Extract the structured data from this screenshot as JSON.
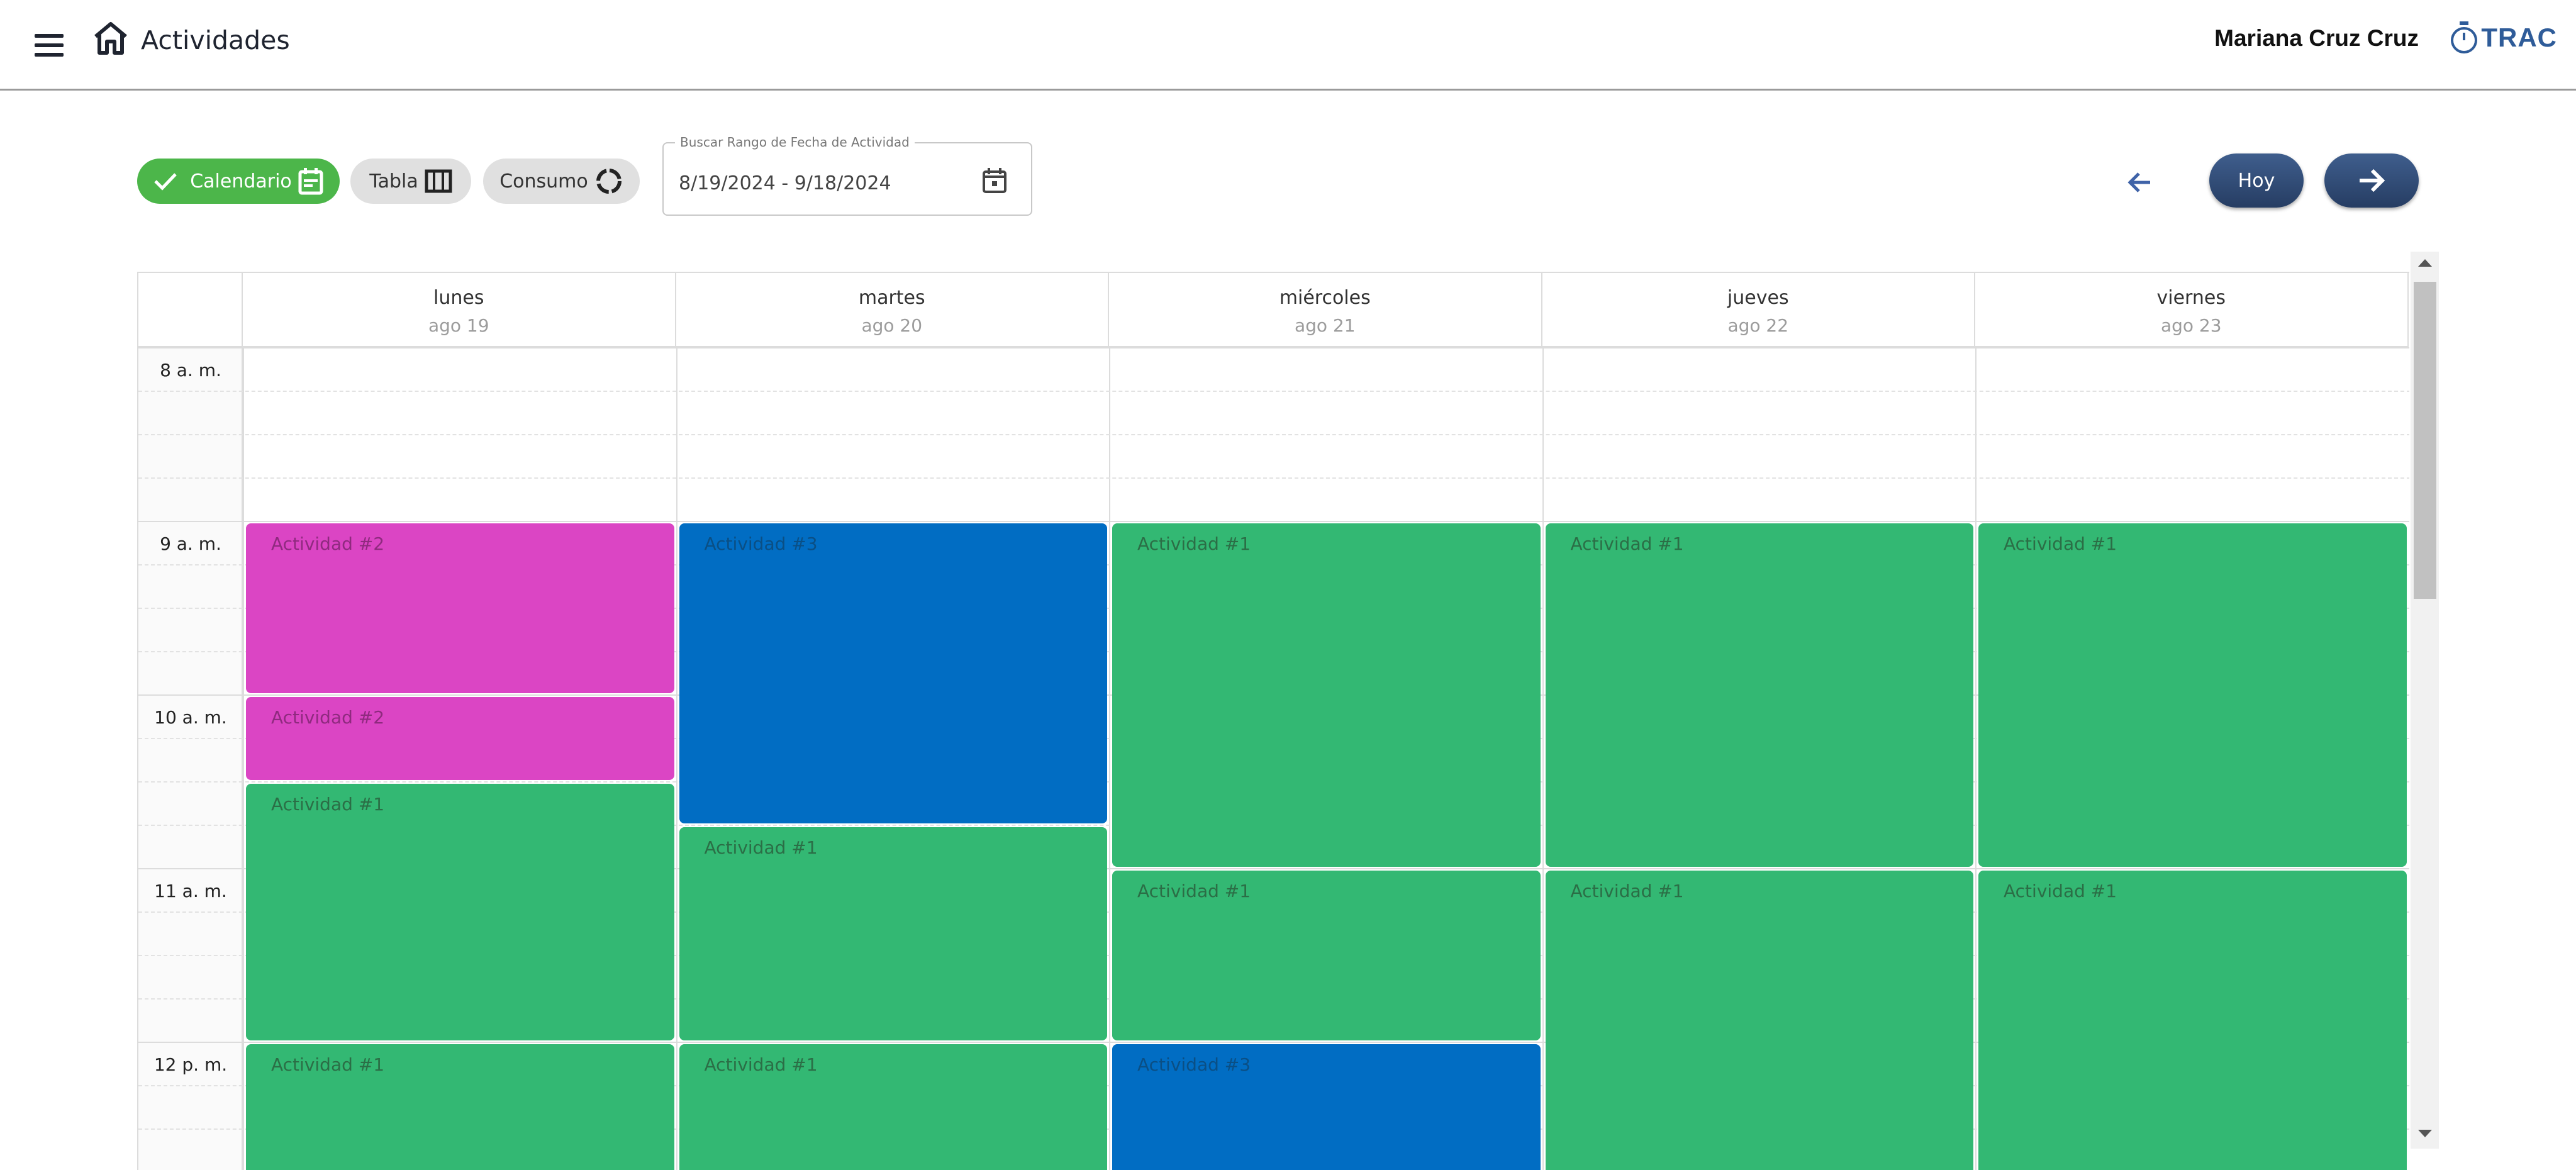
{
  "header": {
    "title": "Actividades",
    "user_name": "Mariana Cruz Cruz",
    "brand": "TRAC"
  },
  "toolbar": {
    "views": {
      "calendar": "Calendario",
      "table": "Tabla",
      "consumption": "Consumo"
    },
    "date_range": {
      "label": "Buscar Rango de Fecha de Actividad",
      "value": "8/19/2024 - 9/18/2024"
    },
    "today_label": "Hoy"
  },
  "calendar": {
    "days": [
      {
        "name": "lunes",
        "date": "ago 19"
      },
      {
        "name": "martes",
        "date": "ago 20"
      },
      {
        "name": "miércoles",
        "date": "ago 21"
      },
      {
        "name": "jueves",
        "date": "ago 22"
      },
      {
        "name": "viernes",
        "date": "ago 23"
      }
    ],
    "hours": [
      "8 a. m.",
      "9 a. m.",
      "10 a. m.",
      "11 a. m.",
      "12 p. m."
    ],
    "events": [
      {
        "day": 0,
        "start": "9:00",
        "end": "10:00",
        "title": "Actividad #2",
        "color": "#db45c4"
      },
      {
        "day": 0,
        "start": "10:00",
        "end": "10:30",
        "title": "Actividad #2",
        "color": "#db45c4"
      },
      {
        "day": 0,
        "start": "10:30",
        "end": "12:00",
        "title": "Actividad #1",
        "color": "#33b873"
      },
      {
        "day": 0,
        "start": "12:00",
        "end": "",
        "title": "Actividad #1",
        "color": "#33b873"
      },
      {
        "day": 1,
        "start": "9:00",
        "end": "10:45",
        "title": "Actividad #3",
        "color": "#016dc3"
      },
      {
        "day": 1,
        "start": "10:45",
        "end": "12:00",
        "title": "Actividad #1",
        "color": "#33b873"
      },
      {
        "day": 1,
        "start": "12:00",
        "end": "",
        "title": "Actividad #1",
        "color": "#33b873"
      },
      {
        "day": 2,
        "start": "9:00",
        "end": "11:00",
        "title": "Actividad #1",
        "color": "#33b873"
      },
      {
        "day": 2,
        "start": "11:00",
        "end": "12:00",
        "title": "Actividad #1",
        "color": "#33b873"
      },
      {
        "day": 2,
        "start": "12:00",
        "end": "",
        "title": "Actividad #3",
        "color": "#016dc3"
      },
      {
        "day": 3,
        "start": "9:00",
        "end": "11:00",
        "title": "Actividad #1",
        "color": "#33b873"
      },
      {
        "day": 3,
        "start": "11:00",
        "end": "",
        "title": "Actividad #1",
        "color": "#33b873"
      },
      {
        "day": 4,
        "start": "9:00",
        "end": "11:00",
        "title": "Actividad #1",
        "color": "#33b873"
      },
      {
        "day": 4,
        "start": "11:00",
        "end": "",
        "title": "Actividad #1",
        "color": "#33b873"
      }
    ]
  },
  "colors": {
    "accent_green": "#4cb64a",
    "nav_blue": "#2f4b78",
    "brand_blue": "#2f5c99"
  },
  "icons": [
    "menu-icon",
    "home-icon",
    "stopwatch-icon",
    "check-icon",
    "calendar-icon",
    "table-columns-icon",
    "loading-circle-icon",
    "arrow-left-icon",
    "arrow-right-icon"
  ]
}
